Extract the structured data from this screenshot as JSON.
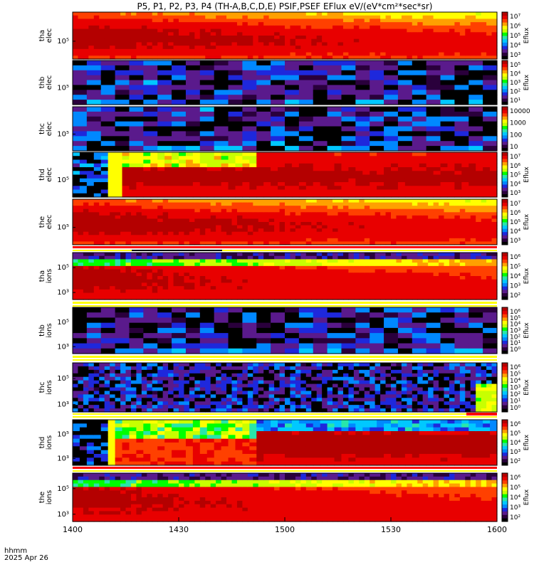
{
  "title": "P5, P1, P2, P3, P4 (TH-A,B,C,D,E) PSIF,PSEF EFlux eV/(eV*cm²*sec*sr)",
  "footer": {
    "time_label": "hhmm",
    "date_label": "2025 Apr 26"
  },
  "chart_data": {
    "type": "heatmap",
    "x_axis": {
      "range": [
        "1400",
        "1600"
      ],
      "ticks": [
        "1400",
        "1430",
        "1500",
        "1530",
        "1600"
      ]
    },
    "colorscale": [
      "#000000",
      "#2a003c",
      "#5a1a8c",
      "#1e28dc",
      "#0088ff",
      "#00c8ff",
      "#28e6aa",
      "#00ff00",
      "#c8ff00",
      "#ffff00",
      "#ffa000",
      "#ff4000",
      "#e80000",
      "#b40000"
    ],
    "panels": [
      {
        "id": "tha-elec",
        "ylabel": [
          "tha",
          "elec"
        ],
        "yticks": [
          "10⁵"
        ],
        "colorbar_ticks": [
          "10⁷",
          "10⁶",
          "10⁵",
          "10⁴",
          "10³"
        ],
        "colorbar_label": "Eflux",
        "pattern": "dense",
        "seed": 11
      },
      {
        "id": "thb-elec",
        "ylabel": [
          "thb",
          "elec"
        ],
        "yticks": [
          "10⁵"
        ],
        "colorbar_ticks": [
          "10⁵",
          "10⁴",
          "10³",
          "10²",
          "10¹"
        ],
        "colorbar_label": "Eflux",
        "pattern": "sparse",
        "seed": 23
      },
      {
        "id": "thc-elec",
        "ylabel": [
          "thc",
          "elec"
        ],
        "yticks": [
          "10⁵"
        ],
        "colorbar_ticks": [
          "10000",
          "1000",
          "100",
          "10"
        ],
        "colorbar_label": "",
        "pattern": "sparse",
        "seed": 37
      },
      {
        "id": "thd-elec",
        "ylabel": [
          "thd",
          "elec"
        ],
        "yticks": [
          "10⁵"
        ],
        "colorbar_ticks": [
          "10⁷",
          "10⁶",
          "10⁵",
          "10⁴",
          "10³"
        ],
        "colorbar_label": "Eflux",
        "pattern": "thd-elec",
        "seed": 41
      },
      {
        "id": "the-elec",
        "ylabel": [
          "the",
          "elec"
        ],
        "yticks": [
          "10⁵"
        ],
        "colorbar_ticks": [
          "10⁷",
          "10⁶",
          "10⁵",
          "10⁴",
          "10³"
        ],
        "colorbar_label": "Eflux",
        "pattern": "dense",
        "seed": 53
      },
      {
        "id": "tha-ions",
        "ylabel": [
          "tha",
          "ions"
        ],
        "yticks": [
          "10⁵",
          "10³"
        ],
        "colorbar_ticks": [
          "10⁶",
          "10⁵",
          "10⁴",
          "10³",
          "10²"
        ],
        "colorbar_label": "Eflux",
        "pattern": "ions",
        "seed": 61
      },
      {
        "id": "thb-ions",
        "ylabel": [
          "thb",
          "ions"
        ],
        "yticks": [
          "10⁵",
          "10³"
        ],
        "colorbar_ticks": [
          "10⁶",
          "10⁵",
          "10⁴",
          "10³",
          "10²",
          "10¹",
          "10⁰"
        ],
        "colorbar_label": "Eflux",
        "pattern": "sparse",
        "seed": 71
      },
      {
        "id": "thc-ions",
        "ylabel": [
          "thc",
          "ions"
        ],
        "yticks": [
          "10⁵",
          "10³"
        ],
        "colorbar_ticks": [
          "10⁶",
          "10⁵",
          "10⁴",
          "10³",
          "10²",
          "10¹",
          "10⁰"
        ],
        "colorbar_label": "Eflux",
        "pattern": "thc-ions",
        "seed": 83
      },
      {
        "id": "thd-ions",
        "ylabel": [
          "thd",
          "ions"
        ],
        "yticks": [
          "10⁵",
          "10³"
        ],
        "colorbar_ticks": [
          "10⁶",
          "10⁵",
          "10⁴",
          "10³",
          "10²"
        ],
        "colorbar_label": "Eflux",
        "pattern": "thd-ions",
        "seed": 97
      },
      {
        "id": "the-ions",
        "ylabel": [
          "the",
          "ions"
        ],
        "yticks": [
          "10⁵",
          "10³"
        ],
        "colorbar_ticks": [
          "10⁶",
          "10⁵",
          "10⁴",
          "10³",
          "10²"
        ],
        "colorbar_label": "Eflux",
        "pattern": "ions",
        "seed": 101
      }
    ]
  }
}
